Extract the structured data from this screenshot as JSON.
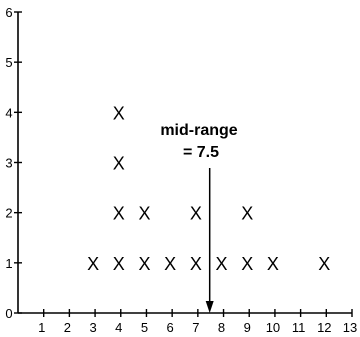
{
  "chart_data": {
    "type": "scatter",
    "marker": "X",
    "x_ticks": [
      "1",
      "2",
      "3",
      "4",
      "5",
      "6",
      "7",
      "8",
      "9",
      "10",
      "11",
      "12",
      "13"
    ],
    "y_ticks": [
      "0",
      "1",
      "2",
      "3",
      "4",
      "5",
      "6"
    ],
    "xlim": [
      0,
      13
    ],
    "ylim": [
      0,
      6
    ],
    "points": [
      {
        "x": 3,
        "y": 1
      },
      {
        "x": 4,
        "y": 1
      },
      {
        "x": 4,
        "y": 2
      },
      {
        "x": 4,
        "y": 3
      },
      {
        "x": 4,
        "y": 4
      },
      {
        "x": 5,
        "y": 1
      },
      {
        "x": 5,
        "y": 2
      },
      {
        "x": 6,
        "y": 1
      },
      {
        "x": 7,
        "y": 1
      },
      {
        "x": 7,
        "y": 2
      },
      {
        "x": 8,
        "y": 1
      },
      {
        "x": 9,
        "y": 1
      },
      {
        "x": 9,
        "y": 2
      },
      {
        "x": 10,
        "y": 1
      },
      {
        "x": 12,
        "y": 1
      }
    ],
    "annotation": {
      "line1": "mid-range",
      "line2": "= 7.5",
      "x": 7.5
    },
    "grid": false
  }
}
